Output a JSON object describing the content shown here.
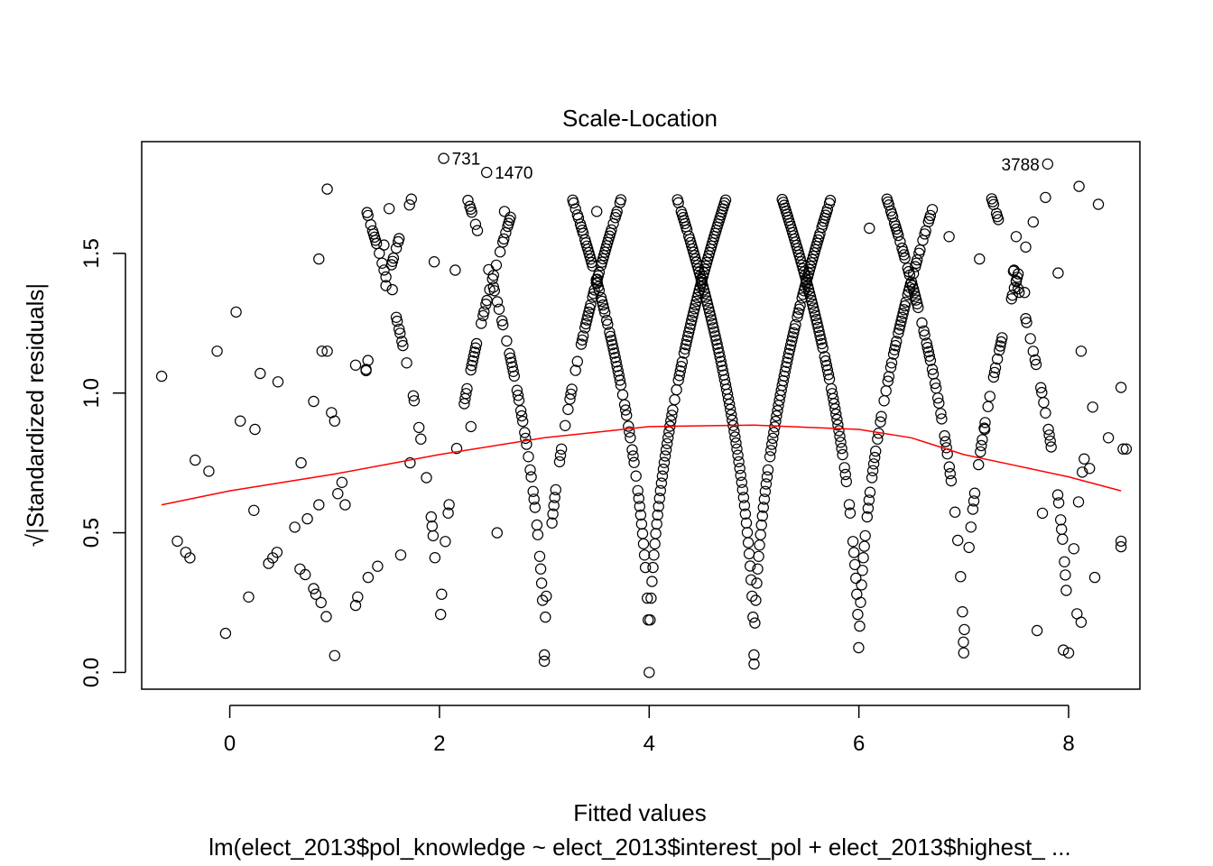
{
  "chart_data": {
    "type": "scatter",
    "title": "Scale-Location",
    "xlabel": "Fitted values",
    "ylabel": "√|Standardized residuals|",
    "subtitle": "lm(elect_2013$pol_knowledge ~ elect_2013$interest_pol + elect_2013$highest_ ...",
    "xlim": [
      -0.84,
      8.68
    ],
    "ylim": [
      -0.06,
      1.9
    ],
    "x_ticks": [
      0,
      2,
      4,
      6,
      8
    ],
    "y_ticks": [
      0.0,
      0.5,
      1.0,
      1.5
    ],
    "x_tick_labels": [
      "0",
      "2",
      "4",
      "6",
      "8"
    ],
    "y_tick_labels": [
      "0.0",
      "0.5",
      "1.0",
      "1.5"
    ],
    "grid": false,
    "point_style": "open circle",
    "smoother_color": "#ff0000",
    "series": [
      {
        "type": "scatter",
        "points": [
          [
            -0.65,
            1.06
          ],
          [
            -0.5,
            0.47
          ],
          [
            -0.42,
            0.43
          ],
          [
            -0.38,
            0.41
          ],
          [
            -0.33,
            0.76
          ],
          [
            -0.2,
            0.72
          ],
          [
            -0.12,
            1.15
          ],
          [
            -0.04,
            0.14
          ],
          [
            0.06,
            1.29
          ],
          [
            0.1,
            0.9
          ],
          [
            0.18,
            0.27
          ],
          [
            0.23,
            0.58
          ],
          [
            0.24,
            0.87
          ],
          [
            0.29,
            1.07
          ],
          [
            0.37,
            0.39
          ],
          [
            0.41,
            0.41
          ],
          [
            0.45,
            0.43
          ],
          [
            0.46,
            1.04
          ],
          [
            0.62,
            0.52
          ],
          [
            0.67,
            0.37
          ],
          [
            0.68,
            0.75
          ],
          [
            0.72,
            0.35
          ],
          [
            0.74,
            0.55
          ],
          [
            0.8,
            0.97
          ],
          [
            0.8,
            0.3
          ],
          [
            0.82,
            0.28
          ],
          [
            0.85,
            0.6
          ],
          [
            0.85,
            1.48
          ],
          [
            0.87,
            0.25
          ],
          [
            0.88,
            1.15
          ],
          [
            0.92,
            0.2
          ],
          [
            0.93,
            1.73
          ],
          [
            0.93,
            1.15
          ],
          [
            0.97,
            0.93
          ],
          [
            1.0,
            0.06
          ],
          [
            1.03,
            0.64
          ],
          [
            1.07,
            0.68
          ],
          [
            1.2,
            0.24
          ],
          [
            1.22,
            0.27
          ],
          [
            1.32,
            0.34
          ],
          [
            1.41,
            0.38
          ],
          [
            1.47,
            1.53
          ],
          [
            1.52,
            1.66
          ],
          [
            1.55,
            1.37
          ],
          [
            1.63,
            0.42
          ],
          [
            1.72,
            0.75
          ],
          [
            1.95,
            1.47
          ],
          [
            2.04,
            1.84
          ],
          [
            2.15,
            1.44
          ],
          [
            2.45,
            1.79
          ],
          [
            2.62,
            1.65
          ],
          [
            3.0,
            0.04
          ],
          [
            3.5,
            1.65
          ],
          [
            5.0,
            0.03
          ],
          [
            6.1,
            1.59
          ],
          [
            7.0,
            0.07
          ],
          [
            7.5,
            1.56
          ],
          [
            7.8,
            1.82
          ],
          [
            7.78,
            1.7
          ],
          [
            7.9,
            1.43
          ],
          [
            8.1,
            1.74
          ],
          [
            8.12,
            1.15
          ],
          [
            8.2,
            0.73
          ],
          [
            8.25,
            0.34
          ],
          [
            8.38,
            0.84
          ],
          [
            8.5,
            1.02
          ],
          [
            8.5,
            0.47
          ],
          [
            8.5,
            0.45
          ],
          [
            8.52,
            0.8
          ],
          [
            8.55,
            0.8
          ],
          [
            8.0,
            0.07
          ],
          [
            7.95,
            0.08
          ],
          [
            7.7,
            0.15
          ],
          [
            7.75,
            0.57
          ],
          [
            8.08,
            0.21
          ],
          [
            8.12,
            0.18
          ],
          [
            7.58,
            1.36
          ],
          [
            7.48,
            1.44
          ],
          [
            7.2,
            0.87
          ],
          [
            7.15,
            1.48
          ],
          [
            6.86,
            1.56
          ],
          [
            2.3,
            0.88
          ],
          [
            2.55,
            0.5
          ],
          [
            1.1,
            0.6
          ],
          [
            1.0,
            0.9
          ],
          [
            1.2,
            1.1
          ],
          [
            1.3,
            1.08
          ]
        ]
      },
      {
        "type": "family",
        "description": "residual arcs for integer outcomes",
        "centers": [
          -1,
          0,
          1,
          2,
          3,
          4,
          5,
          6,
          7,
          8,
          9,
          10
        ],
        "x_range": [
          1.3,
          8.3
        ]
      }
    ],
    "smoother": [
      [
        -0.65,
        0.6
      ],
      [
        0,
        0.65
      ],
      [
        1,
        0.71
      ],
      [
        2,
        0.78
      ],
      [
        3,
        0.84
      ],
      [
        4,
        0.88
      ],
      [
        5,
        0.885
      ],
      [
        6,
        0.87
      ],
      [
        6.5,
        0.84
      ],
      [
        7,
        0.78
      ],
      [
        7.5,
        0.74
      ],
      [
        8,
        0.7
      ],
      [
        8.5,
        0.65
      ]
    ],
    "annotations": [
      {
        "text": "731",
        "x": 2.04,
        "y": 1.84
      },
      {
        "text": "1470",
        "x": 2.45,
        "y": 1.79
      },
      {
        "text": "3788",
        "x": 7.8,
        "y": 1.82
      }
    ]
  }
}
